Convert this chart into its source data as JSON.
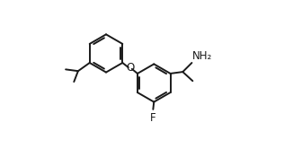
{
  "background": "#ffffff",
  "line_color": "#1a1a1a",
  "line_width": 1.4,
  "font_size": 8.5,
  "r1cx": 0.255,
  "r1cy": 0.68,
  "r1r": 0.115,
  "r2cx": 0.545,
  "r2cy": 0.5,
  "r2r": 0.115,
  "O_label": "O",
  "F_label": "F",
  "NH2_label": "NH₂"
}
